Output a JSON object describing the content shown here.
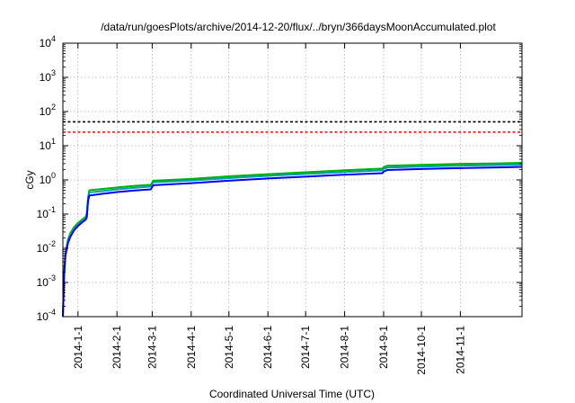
{
  "chart_data": {
    "type": "line",
    "title": "/data/run/goesPlots/archive/2014-12-20/flux/../bryn/366daysMoonAccumulated.plot",
    "xlabel": "Coordinated Universal Time (UTC)",
    "ylabel": "cGy",
    "y_scale": "log",
    "ylim": [
      0.0001,
      10000
    ],
    "xlim": [
      "2013-12-20",
      "2014-12-20"
    ],
    "grid": true,
    "legend": "none",
    "y_ticks": [
      {
        "value": 0.0001,
        "base": "10",
        "exp": "-4"
      },
      {
        "value": 0.001,
        "base": "10",
        "exp": "-3"
      },
      {
        "value": 0.01,
        "base": "10",
        "exp": "-2"
      },
      {
        "value": 0.1,
        "base": "10",
        "exp": "-1"
      },
      {
        "value": 1,
        "base": "10",
        "exp": "0"
      },
      {
        "value": 10,
        "base": "10",
        "exp": "1"
      },
      {
        "value": 100,
        "base": "10",
        "exp": "2"
      },
      {
        "value": 1000,
        "base": "10",
        "exp": "3"
      },
      {
        "value": 10000,
        "base": "10",
        "exp": "4"
      }
    ],
    "x_ticks": [
      {
        "value": "2014-01-01",
        "label": "2014-1-1"
      },
      {
        "value": "2014-02-01",
        "label": "2014-2-1"
      },
      {
        "value": "2014-03-01",
        "label": "2014-3-1"
      },
      {
        "value": "2014-04-01",
        "label": "2014-4-1"
      },
      {
        "value": "2014-05-01",
        "label": "2014-5-1"
      },
      {
        "value": "2014-06-01",
        "label": "2014-6-1"
      },
      {
        "value": "2014-07-01",
        "label": "2014-7-1"
      },
      {
        "value": "2014-08-01",
        "label": "2014-8-1"
      },
      {
        "value": "2014-09-01",
        "label": "2014-9-1"
      },
      {
        "value": "2014-10-01",
        "label": "2014-10-1"
      },
      {
        "value": "2014-11-01",
        "label": "2014-11-1"
      }
    ],
    "reference_lines": [
      {
        "y": 50,
        "color": "#000000"
      },
      {
        "y": 25,
        "color": "#ff0000"
      }
    ],
    "series": [
      {
        "color": "#00b000",
        "points": [
          [
            "2013-12-20",
            0.0001
          ],
          [
            "2013-12-21",
            0.002
          ],
          [
            "2013-12-22",
            0.007
          ],
          [
            "2013-12-24",
            0.018
          ],
          [
            "2013-12-26",
            0.028
          ],
          [
            "2013-12-29",
            0.042
          ],
          [
            "2014-01-01",
            0.055
          ],
          [
            "2014-01-04",
            0.068
          ],
          [
            "2014-01-07",
            0.082
          ],
          [
            "2014-01-08",
            0.1
          ],
          [
            "2014-01-09",
            0.3
          ],
          [
            "2014-01-10",
            0.5
          ],
          [
            "2014-01-20",
            0.54
          ],
          [
            "2014-02-01",
            0.6
          ],
          [
            "2014-02-15",
            0.67
          ],
          [
            "2014-02-28",
            0.72
          ],
          [
            "2014-03-01",
            0.85
          ],
          [
            "2014-03-02",
            0.95
          ],
          [
            "2014-04-01",
            1.07
          ],
          [
            "2014-05-01",
            1.27
          ],
          [
            "2014-06-01",
            1.47
          ],
          [
            "2014-07-01",
            1.67
          ],
          [
            "2014-08-01",
            1.92
          ],
          [
            "2014-08-31",
            2.15
          ],
          [
            "2014-09-01",
            2.35
          ],
          [
            "2014-09-04",
            2.6
          ],
          [
            "2014-10-01",
            2.75
          ],
          [
            "2014-11-01",
            2.95
          ],
          [
            "2014-12-01",
            3.05
          ],
          [
            "2014-12-20",
            3.15
          ]
        ]
      },
      {
        "color": "#00a0a0",
        "points": [
          [
            "2013-12-20",
            0.0001
          ],
          [
            "2013-12-21",
            0.0018
          ],
          [
            "2013-12-22",
            0.0065
          ],
          [
            "2013-12-24",
            0.016
          ],
          [
            "2013-12-26",
            0.025
          ],
          [
            "2013-12-29",
            0.038
          ],
          [
            "2014-01-01",
            0.05
          ],
          [
            "2014-01-04",
            0.062
          ],
          [
            "2014-01-07",
            0.075
          ],
          [
            "2014-01-08",
            0.09
          ],
          [
            "2014-01-09",
            0.27
          ],
          [
            "2014-01-10",
            0.43
          ],
          [
            "2014-01-20",
            0.47
          ],
          [
            "2014-02-01",
            0.53
          ],
          [
            "2014-02-15",
            0.59
          ],
          [
            "2014-02-28",
            0.64
          ],
          [
            "2014-03-01",
            0.76
          ],
          [
            "2014-03-02",
            0.85
          ],
          [
            "2014-04-01",
            0.96
          ],
          [
            "2014-05-01",
            1.13
          ],
          [
            "2014-06-01",
            1.31
          ],
          [
            "2014-07-01",
            1.49
          ],
          [
            "2014-08-01",
            1.7
          ],
          [
            "2014-08-31",
            1.9
          ],
          [
            "2014-09-01",
            2.1
          ],
          [
            "2014-09-04",
            2.3
          ],
          [
            "2014-10-01",
            2.45
          ],
          [
            "2014-11-01",
            2.62
          ],
          [
            "2014-12-01",
            2.72
          ],
          [
            "2014-12-20",
            2.8
          ]
        ]
      },
      {
        "color": "#0000ff",
        "points": [
          [
            "2013-12-20",
            0.0001
          ],
          [
            "2013-12-21",
            0.0016
          ],
          [
            "2013-12-22",
            0.006
          ],
          [
            "2013-12-24",
            0.014
          ],
          [
            "2013-12-26",
            0.022
          ],
          [
            "2013-12-29",
            0.034
          ],
          [
            "2014-01-01",
            0.045
          ],
          [
            "2014-01-04",
            0.056
          ],
          [
            "2014-01-07",
            0.068
          ],
          [
            "2014-01-08",
            0.08
          ],
          [
            "2014-01-09",
            0.24
          ],
          [
            "2014-01-10",
            0.35
          ],
          [
            "2014-01-20",
            0.39
          ],
          [
            "2014-02-01",
            0.44
          ],
          [
            "2014-02-15",
            0.49
          ],
          [
            "2014-02-28",
            0.53
          ],
          [
            "2014-03-01",
            0.63
          ],
          [
            "2014-03-02",
            0.7
          ],
          [
            "2014-04-01",
            0.8
          ],
          [
            "2014-05-01",
            0.95
          ],
          [
            "2014-06-01",
            1.1
          ],
          [
            "2014-07-01",
            1.25
          ],
          [
            "2014-08-01",
            1.42
          ],
          [
            "2014-08-31",
            1.58
          ],
          [
            "2014-09-01",
            1.75
          ],
          [
            "2014-09-04",
            1.95
          ],
          [
            "2014-10-01",
            2.08
          ],
          [
            "2014-11-01",
            2.22
          ],
          [
            "2014-12-01",
            2.32
          ],
          [
            "2014-12-20",
            2.4
          ]
        ]
      }
    ]
  }
}
